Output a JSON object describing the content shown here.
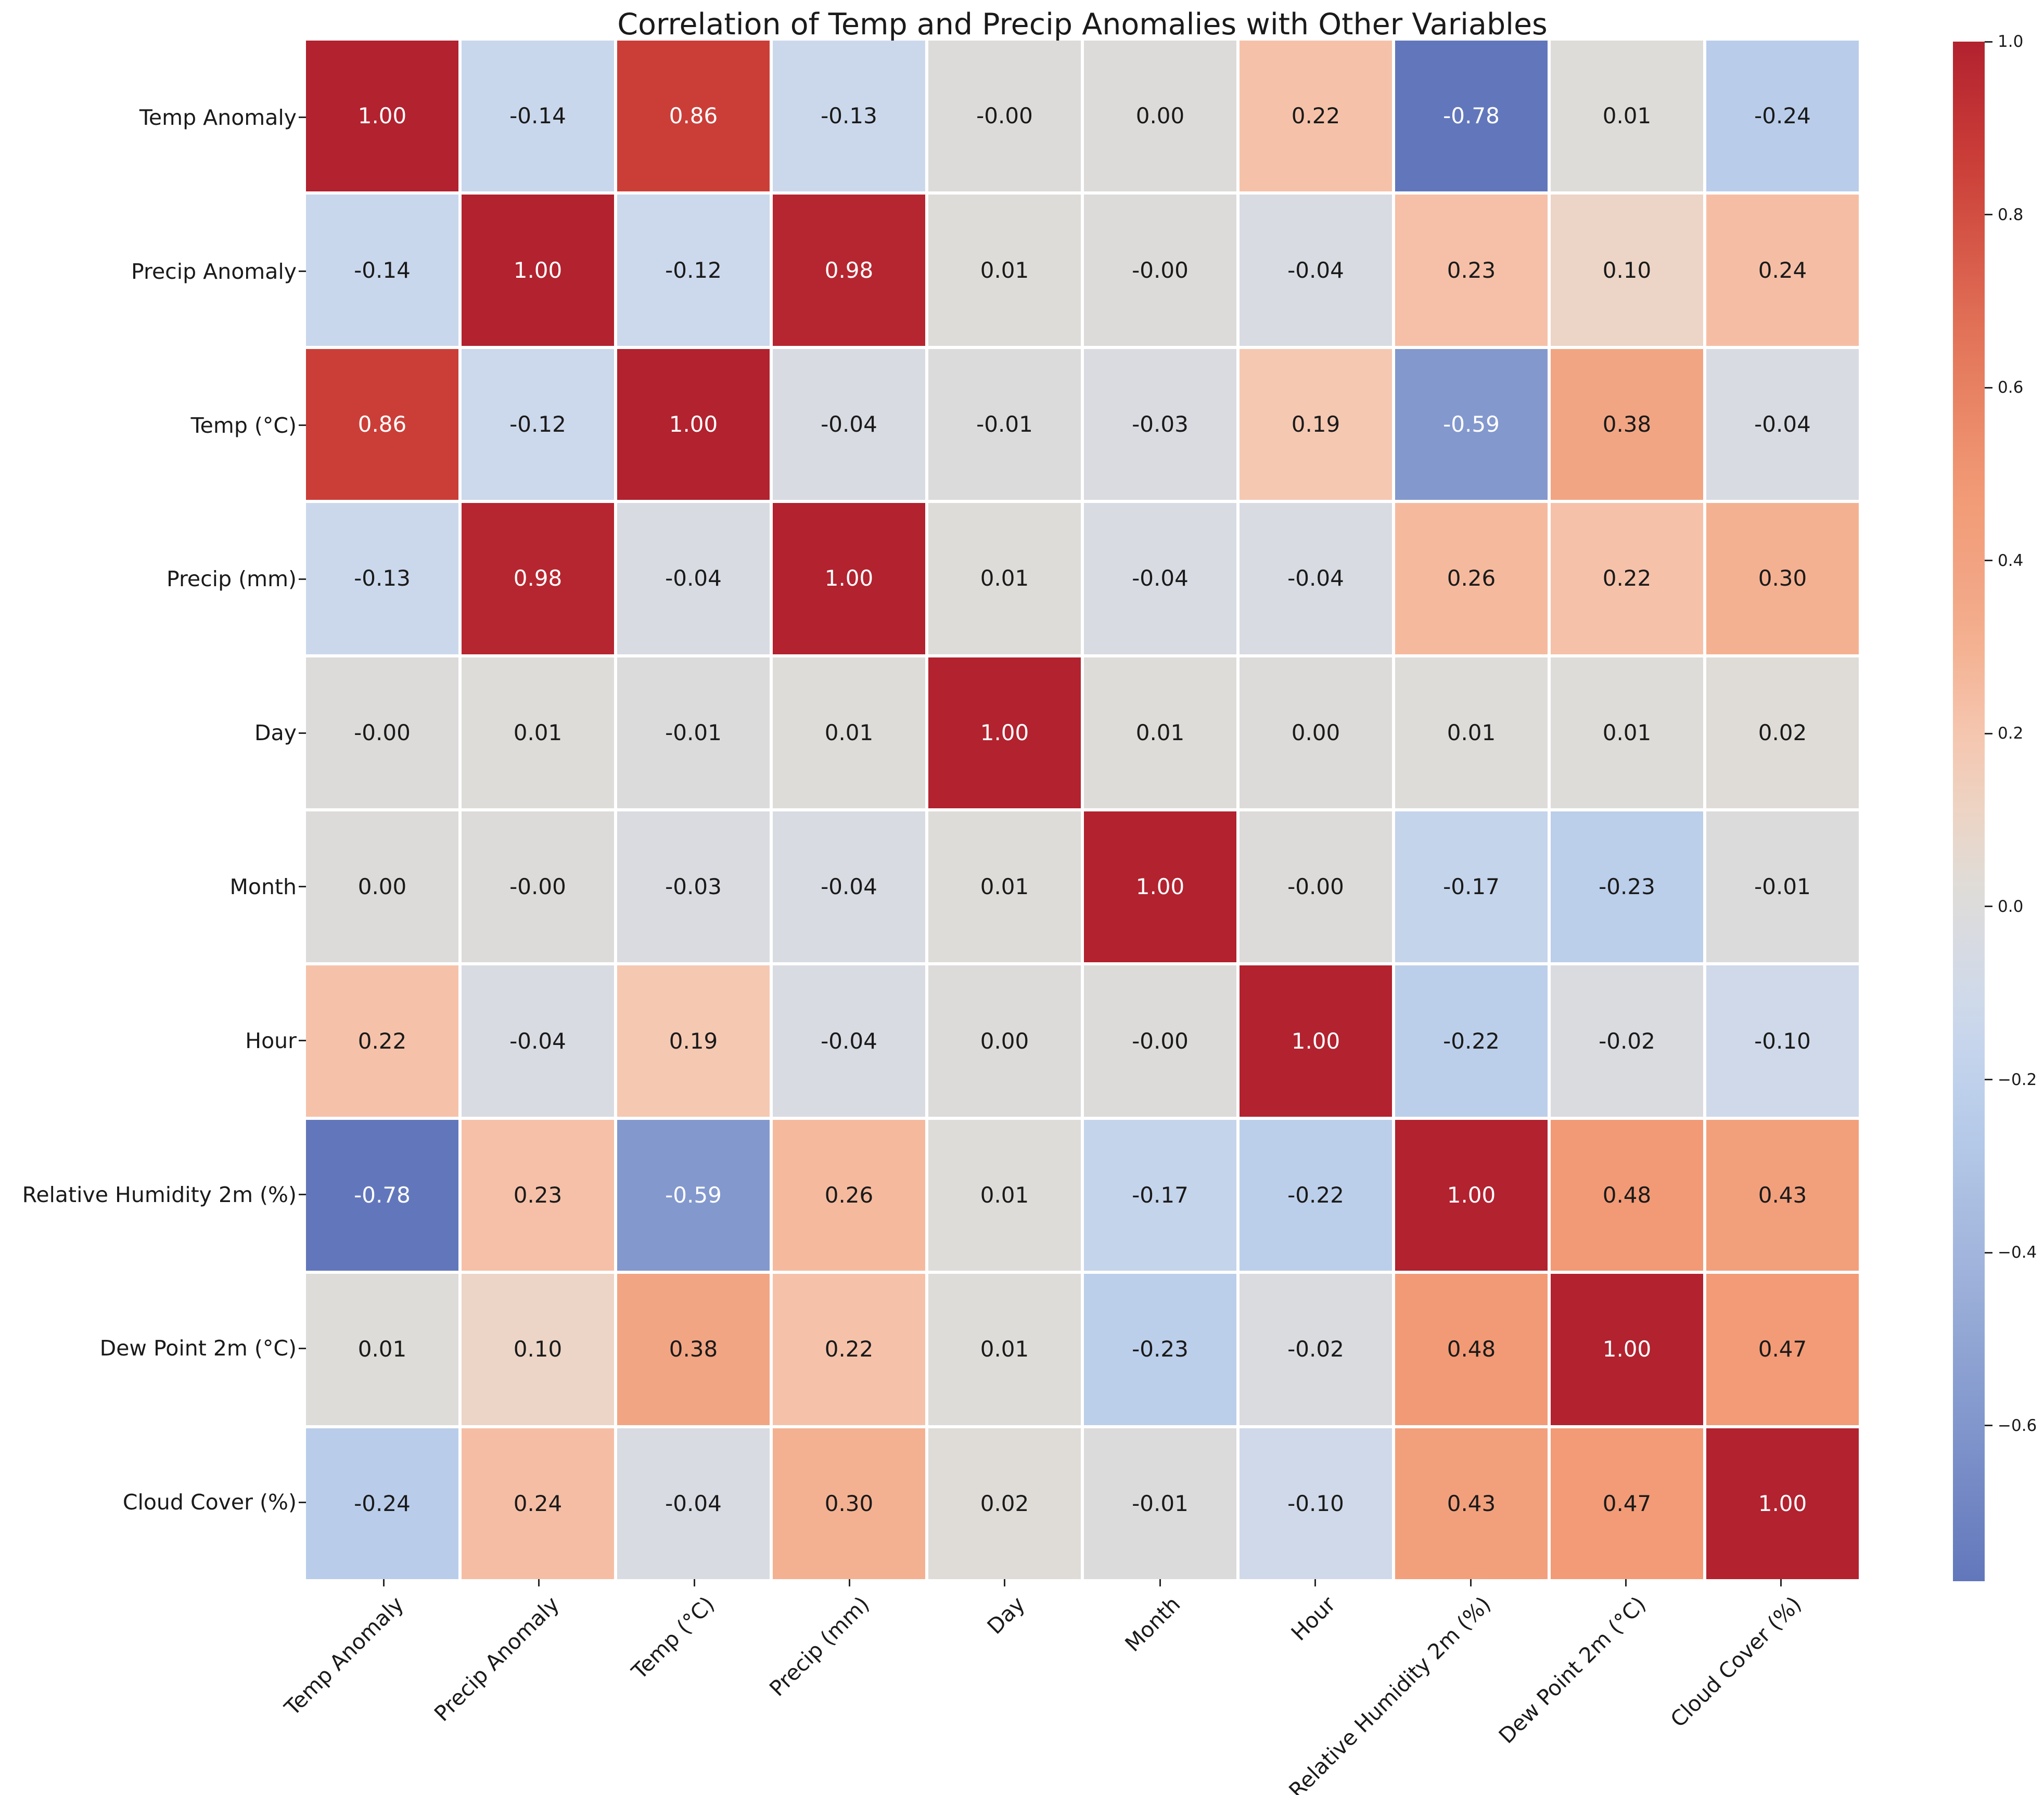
{
  "chart_data": {
    "type": "heatmap",
    "title": "Correlation of Temp and Precip Anomalies with Other Variables",
    "categories": [
      "Temp Anomaly",
      "Precip Anomaly",
      "Temp (°C)",
      "Precip (mm)",
      "Day",
      "Month",
      "Hour",
      "Relative Humidity 2m (%)",
      "Dew Point 2m (°C)",
      "Cloud Cover (%)"
    ],
    "matrix_display": [
      [
        "1.00",
        "-0.14",
        "0.86",
        "-0.13",
        "-0.00",
        "0.00",
        "0.22",
        "-0.78",
        "0.01",
        "-0.24"
      ],
      [
        "-0.14",
        "1.00",
        "-0.12",
        "0.98",
        "0.01",
        "-0.00",
        "-0.04",
        "0.23",
        "0.10",
        "0.24"
      ],
      [
        "0.86",
        "-0.12",
        "1.00",
        "-0.04",
        "-0.01",
        "-0.03",
        "0.19",
        "-0.59",
        "0.38",
        "-0.04"
      ],
      [
        "-0.13",
        "0.98",
        "-0.04",
        "1.00",
        "0.01",
        "-0.04",
        "-0.04",
        "0.26",
        "0.22",
        "0.30"
      ],
      [
        "-0.00",
        "0.01",
        "-0.01",
        "0.01",
        "1.00",
        "0.01",
        "0.00",
        "0.01",
        "0.01",
        "0.02"
      ],
      [
        "0.00",
        "-0.00",
        "-0.03",
        "-0.04",
        "0.01",
        "1.00",
        "-0.00",
        "-0.17",
        "-0.23",
        "-0.01"
      ],
      [
        "0.22",
        "-0.04",
        "0.19",
        "-0.04",
        "0.00",
        "-0.00",
        "1.00",
        "-0.22",
        "-0.02",
        "-0.10"
      ],
      [
        "-0.78",
        "0.23",
        "-0.59",
        "0.26",
        "0.01",
        "-0.17",
        "-0.22",
        "1.00",
        "0.48",
        "0.43"
      ],
      [
        "0.01",
        "0.10",
        "0.38",
        "0.22",
        "0.01",
        "-0.23",
        "-0.02",
        "0.48",
        "1.00",
        "0.47"
      ],
      [
        "-0.24",
        "0.24",
        "-0.04",
        "0.30",
        "0.02",
        "-0.01",
        "-0.10",
        "0.43",
        "0.47",
        "1.00"
      ]
    ],
    "colorbar": {
      "vmin": -0.78,
      "vmax": 1.0,
      "tick_values": [
        1.0,
        0.8,
        0.6,
        0.4,
        0.2,
        0.0,
        -0.2,
        -0.4,
        -0.6
      ],
      "tick_labels": [
        "1.0",
        "0.8",
        "0.6",
        "0.4",
        "0.2",
        "0.0",
        "−0.2",
        "−0.4",
        "−0.6"
      ],
      "position": "right"
    },
    "palette_stops": [
      [
        -0.78,
        "#6277bb"
      ],
      [
        -0.59,
        "#8398cd"
      ],
      [
        -0.4,
        "#a2b6dd"
      ],
      [
        -0.24,
        "#b9cdea"
      ],
      [
        -0.13,
        "#cbd8ec"
      ],
      [
        -0.04,
        "#d8dbe2"
      ],
      [
        0.0,
        "#dcdbda"
      ],
      [
        0.02,
        "#dfdcd8"
      ],
      [
        0.1,
        "#ecd5c6"
      ],
      [
        0.19,
        "#f5c8b2"
      ],
      [
        0.26,
        "#f5ba9e"
      ],
      [
        0.3,
        "#f4b191"
      ],
      [
        0.38,
        "#f2a583"
      ],
      [
        0.48,
        "#f29a75"
      ],
      [
        0.65,
        "#e3765a"
      ],
      [
        0.86,
        "#cb3e38"
      ],
      [
        1.0,
        "#b2222f"
      ]
    ],
    "annotation_text_colors": {
      "light": "#ffffff",
      "dark": "#1a1a1a"
    },
    "layout_hints": {
      "x_tick_rotation_deg": 45,
      "grid_gap_color": "#ffffff"
    }
  }
}
